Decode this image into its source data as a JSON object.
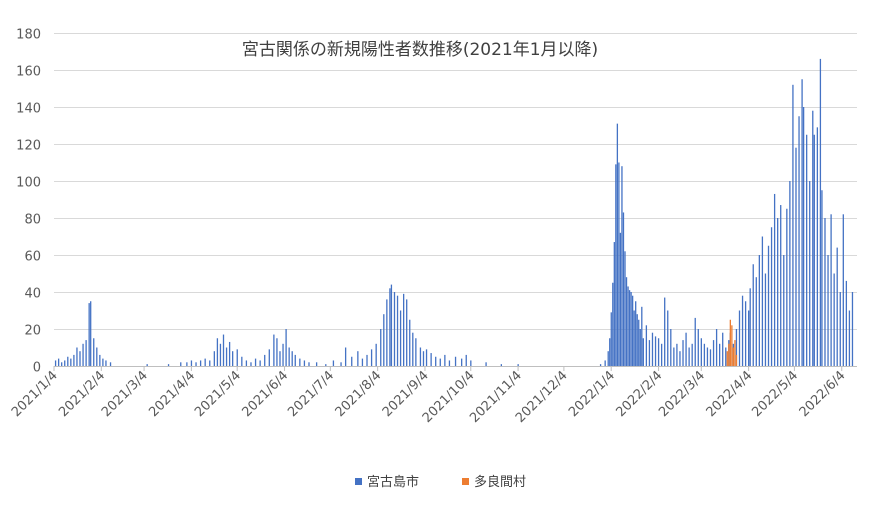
{
  "chart_data": {
    "type": "bar",
    "title": "宮古関係の新規陽性者数推移(2021年1月以降)",
    "xlabel": "",
    "ylabel": "",
    "ylim": [
      0,
      180
    ],
    "y_ticks": [
      "0",
      "20",
      "40",
      "60",
      "80",
      "100",
      "120",
      "140",
      "160",
      "180"
    ],
    "x_range": [
      "2021/1/4",
      "2022/6/14"
    ],
    "x_ticks": [
      "2021/1/4",
      "2021/2/4",
      "2021/3/4",
      "2021/4/4",
      "2021/5/4",
      "2021/6/4",
      "2021/7/4",
      "2021/8/4",
      "2021/9/4",
      "2021/10/4",
      "2021/11/4",
      "2021/12/4",
      "2022/1/4",
      "2022/2/4",
      "2022/3/4",
      "2022/4/4",
      "2022/5/4",
      "2022/6/4"
    ],
    "grid": true,
    "legend_position": "bottom",
    "colors": {
      "miyakojima": "#4472c4",
      "tarama": "#ed7d31"
    },
    "series": [
      {
        "name": "宮古島市",
        "points": [
          [
            "2021/1/5",
            3
          ],
          [
            "2021/1/7",
            4
          ],
          [
            "2021/1/9",
            2
          ],
          [
            "2021/1/11",
            3
          ],
          [
            "2021/1/13",
            5
          ],
          [
            "2021/1/15",
            4
          ],
          [
            "2021/1/17",
            6
          ],
          [
            "2021/1/19",
            10
          ],
          [
            "2021/1/21",
            8
          ],
          [
            "2021/1/23",
            12
          ],
          [
            "2021/1/25",
            14
          ],
          [
            "2021/1/27",
            34
          ],
          [
            "2021/1/28",
            35
          ],
          [
            "2021/1/30",
            15
          ],
          [
            "2021/2/1",
            10
          ],
          [
            "2021/2/3",
            6
          ],
          [
            "2021/2/5",
            4
          ],
          [
            "2021/2/7",
            3
          ],
          [
            "2021/2/10",
            2
          ],
          [
            "2021/3/6",
            1
          ],
          [
            "2021/3/20",
            1
          ],
          [
            "2021/3/28",
            2
          ],
          [
            "2021/4/1",
            2
          ],
          [
            "2021/4/4",
            3
          ],
          [
            "2021/4/7",
            2
          ],
          [
            "2021/4/10",
            3
          ],
          [
            "2021/4/13",
            4
          ],
          [
            "2021/4/16",
            3
          ],
          [
            "2021/4/19",
            8
          ],
          [
            "2021/4/21",
            15
          ],
          [
            "2021/4/23",
            12
          ],
          [
            "2021/4/25",
            17
          ],
          [
            "2021/4/27",
            10
          ],
          [
            "2021/4/29",
            13
          ],
          [
            "2021/5/1",
            8
          ],
          [
            "2021/5/4",
            9
          ],
          [
            "2021/5/7",
            5
          ],
          [
            "2021/5/10",
            3
          ],
          [
            "2021/5/13",
            2
          ],
          [
            "2021/5/16",
            4
          ],
          [
            "2021/5/19",
            3
          ],
          [
            "2021/5/22",
            6
          ],
          [
            "2021/5/25",
            9
          ],
          [
            "2021/5/28",
            17
          ],
          [
            "2021/5/30",
            15
          ],
          [
            "2021/6/1",
            8
          ],
          [
            "2021/6/3",
            12
          ],
          [
            "2021/6/5",
            20
          ],
          [
            "2021/6/7",
            10
          ],
          [
            "2021/6/9",
            8
          ],
          [
            "2021/6/11",
            6
          ],
          [
            "2021/6/14",
            4
          ],
          [
            "2021/6/17",
            3
          ],
          [
            "2021/6/20",
            2
          ],
          [
            "2021/6/25",
            2
          ],
          [
            "2021/7/1",
            1
          ],
          [
            "2021/7/6",
            3
          ],
          [
            "2021/7/11",
            2
          ],
          [
            "2021/7/14",
            10
          ],
          [
            "2021/7/18",
            5
          ],
          [
            "2021/7/22",
            8
          ],
          [
            "2021/7/25",
            4
          ],
          [
            "2021/7/28",
            6
          ],
          [
            "2021/7/31",
            9
          ],
          [
            "2021/8/3",
            12
          ],
          [
            "2021/8/6",
            20
          ],
          [
            "2021/8/8",
            28
          ],
          [
            "2021/8/10",
            36
          ],
          [
            "2021/8/12",
            42
          ],
          [
            "2021/8/13",
            44
          ],
          [
            "2021/8/15",
            40
          ],
          [
            "2021/8/17",
            38
          ],
          [
            "2021/8/19",
            30
          ],
          [
            "2021/8/21",
            39
          ],
          [
            "2021/8/23",
            36
          ],
          [
            "2021/8/25",
            25
          ],
          [
            "2021/8/27",
            18
          ],
          [
            "2021/8/29",
            15
          ],
          [
            "2021/9/1",
            10
          ],
          [
            "2021/9/3",
            8
          ],
          [
            "2021/9/5",
            9
          ],
          [
            "2021/9/8",
            7
          ],
          [
            "2021/9/11",
            5
          ],
          [
            "2021/9/14",
            4
          ],
          [
            "2021/9/17",
            6
          ],
          [
            "2021/9/20",
            3
          ],
          [
            "2021/9/24",
            5
          ],
          [
            "2021/9/28",
            4
          ],
          [
            "2021/10/1",
            6
          ],
          [
            "2021/10/4",
            3
          ],
          [
            "2021/10/14",
            2
          ],
          [
            "2021/10/24",
            1
          ],
          [
            "2021/11/4",
            1
          ],
          [
            "2021/12/28",
            1
          ],
          [
            "2021/12/31",
            3
          ],
          [
            "2022/1/2",
            8
          ],
          [
            "2022/1/3",
            15
          ],
          [
            "2022/1/4",
            29
          ],
          [
            "2022/1/5",
            45
          ],
          [
            "2022/1/6",
            67
          ],
          [
            "2022/1/7",
            109
          ],
          [
            "2022/1/8",
            131
          ],
          [
            "2022/1/9",
            110
          ],
          [
            "2022/1/10",
            72
          ],
          [
            "2022/1/11",
            108
          ],
          [
            "2022/1/12",
            83
          ],
          [
            "2022/1/13",
            62
          ],
          [
            "2022/1/14",
            48
          ],
          [
            "2022/1/15",
            43
          ],
          [
            "2022/1/16",
            41
          ],
          [
            "2022/1/17",
            40
          ],
          [
            "2022/1/18",
            38
          ],
          [
            "2022/1/19",
            30
          ],
          [
            "2022/1/20",
            35
          ],
          [
            "2022/1/21",
            28
          ],
          [
            "2022/1/22",
            25
          ],
          [
            "2022/1/23",
            20
          ],
          [
            "2022/1/24",
            32
          ],
          [
            "2022/1/25",
            15
          ],
          [
            "2022/1/27",
            22
          ],
          [
            "2022/1/29",
            14
          ],
          [
            "2022/1/31",
            18
          ],
          [
            "2022/2/2",
            16
          ],
          [
            "2022/2/4",
            15
          ],
          [
            "2022/2/6",
            12
          ],
          [
            "2022/2/8",
            37
          ],
          [
            "2022/2/10",
            30
          ],
          [
            "2022/2/12",
            20
          ],
          [
            "2022/2/14",
            10
          ],
          [
            "2022/2/16",
            12
          ],
          [
            "2022/2/18",
            8
          ],
          [
            "2022/2/20",
            14
          ],
          [
            "2022/2/22",
            18
          ],
          [
            "2022/2/24",
            10
          ],
          [
            "2022/2/26",
            12
          ],
          [
            "2022/2/28",
            26
          ],
          [
            "2022/3/2",
            20
          ],
          [
            "2022/3/4",
            15
          ],
          [
            "2022/3/6",
            12
          ],
          [
            "2022/3/8",
            10
          ],
          [
            "2022/3/10",
            9
          ],
          [
            "2022/3/12",
            14
          ],
          [
            "2022/3/14",
            20
          ],
          [
            "2022/3/16",
            12
          ],
          [
            "2022/3/18",
            18
          ],
          [
            "2022/3/20",
            10
          ],
          [
            "2022/3/22",
            14
          ],
          [
            "2022/3/23",
            18
          ],
          [
            "2022/3/25",
            12
          ],
          [
            "2022/3/27",
            20
          ],
          [
            "2022/3/29",
            30
          ],
          [
            "2022/3/31",
            38
          ],
          [
            "2022/4/2",
            35
          ],
          [
            "2022/4/4",
            30
          ],
          [
            "2022/4/5",
            42
          ],
          [
            "2022/4/7",
            55
          ],
          [
            "2022/4/9",
            48
          ],
          [
            "2022/4/11",
            60
          ],
          [
            "2022/4/13",
            70
          ],
          [
            "2022/4/15",
            50
          ],
          [
            "2022/4/17",
            65
          ],
          [
            "2022/4/19",
            75
          ],
          [
            "2022/4/21",
            93
          ],
          [
            "2022/4/23",
            80
          ],
          [
            "2022/4/25",
            87
          ],
          [
            "2022/4/27",
            60
          ],
          [
            "2022/4/29",
            85
          ],
          [
            "2022/5/1",
            100
          ],
          [
            "2022/5/3",
            152
          ],
          [
            "2022/5/5",
            118
          ],
          [
            "2022/5/7",
            135
          ],
          [
            "2022/5/9",
            155
          ],
          [
            "2022/5/10",
            140
          ],
          [
            "2022/5/12",
            125
          ],
          [
            "2022/5/14",
            100
          ],
          [
            "2022/5/16",
            138
          ],
          [
            "2022/5/17",
            125
          ],
          [
            "2022/5/19",
            129
          ],
          [
            "2022/5/21",
            166
          ],
          [
            "2022/5/22",
            95
          ],
          [
            "2022/5/24",
            80
          ],
          [
            "2022/5/26",
            60
          ],
          [
            "2022/5/28",
            82
          ],
          [
            "2022/5/30",
            50
          ],
          [
            "2022/6/1",
            64
          ],
          [
            "2022/6/3",
            40
          ],
          [
            "2022/6/5",
            82
          ],
          [
            "2022/6/7",
            46
          ],
          [
            "2022/6/9",
            30
          ],
          [
            "2022/6/11",
            40
          ]
        ]
      },
      {
        "name": "多良間村",
        "points": [
          [
            "2022/3/21",
            8
          ],
          [
            "2022/3/22",
            12
          ],
          [
            "2022/3/23",
            25
          ],
          [
            "2022/3/24",
            22
          ],
          [
            "2022/3/25",
            10
          ],
          [
            "2022/3/26",
            14
          ],
          [
            "2022/3/27",
            6
          ]
        ]
      }
    ]
  }
}
